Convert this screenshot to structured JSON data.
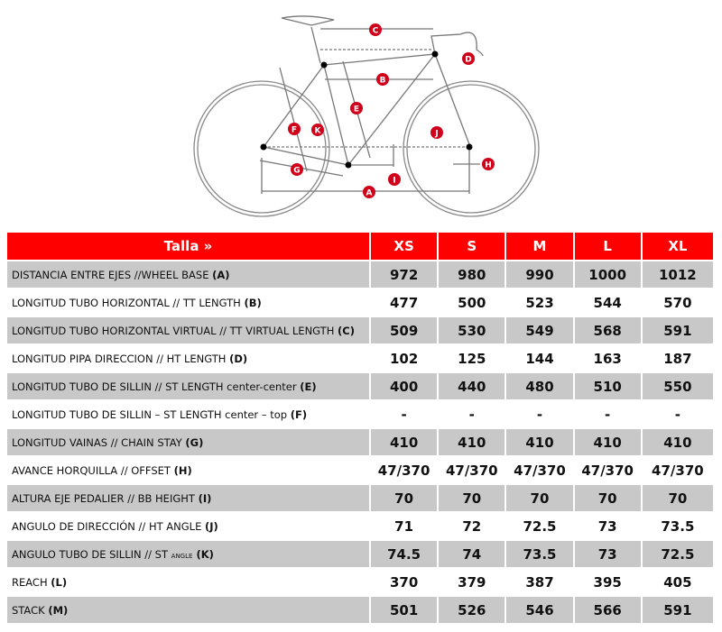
{
  "diagram": {
    "markers": [
      "A",
      "B",
      "C",
      "D",
      "E",
      "F",
      "G",
      "H",
      "I",
      "J",
      "K"
    ],
    "marker_color": "#d0021b"
  },
  "table": {
    "header_color": "#ff0000",
    "header_label": "Talla »",
    "sizes": [
      "XS",
      "S",
      "M",
      "L",
      "XL"
    ],
    "rows": [
      {
        "label": "DISTANCIA ENTRE EJES //WHEEL BASE ",
        "code": "(A)",
        "values": [
          "972",
          "980",
          "990",
          "1000",
          "1012"
        ]
      },
      {
        "label": "LONGITUD TUBO HORIZONTAL // TT LENGTH ",
        "code": "(B)",
        "values": [
          "477",
          "500",
          "523",
          "544",
          "570"
        ]
      },
      {
        "label": "LONGITUD TUBO HORIZONTAL VIRTUAL // TT VIRTUAL LENGTH ",
        "code": "(C)",
        "values": [
          "509",
          "530",
          "549",
          "568",
          "591"
        ]
      },
      {
        "label": "LONGITUD PIPA DIRECCION // HT LENGTH ",
        "code": "(D)",
        "values": [
          "102",
          "125",
          "144",
          "163",
          "187"
        ]
      },
      {
        "label": "LONGITUD TUBO DE SILLIN // ST LENGTH center-center ",
        "code": "(E)",
        "values": [
          "400",
          "440",
          "480",
          "510",
          "550"
        ]
      },
      {
        "label": "LONGITUD TUBO DE SILLIN – ST LENGTH center – top ",
        "code": "(F)",
        "values": [
          "-",
          "-",
          "-",
          "-",
          "-"
        ]
      },
      {
        "label": "LONGITUD VAINAS // CHAIN STAY ",
        "code": "(G)",
        "values": [
          "410",
          "410",
          "410",
          "410",
          "410"
        ]
      },
      {
        "label": "AVANCE HORQUILLA // OFFSET  ",
        "code": "(H)",
        "values": [
          "47/370",
          "47/370",
          "47/370",
          "47/370",
          "47/370"
        ]
      },
      {
        "label": "ALTURA EJE PEDALIER  // BB HEIGHT  ",
        "code": "(I)",
        "values": [
          "70",
          "70",
          "70",
          "70",
          "70"
        ]
      },
      {
        "label": "ANGULO DE DIRECCIÓN // HT ANGLE ",
        "code": "(J)",
        "values": [
          "71",
          "72",
          "72.5",
          "73",
          "73.5"
        ]
      },
      {
        "label": "ANGULO TUBO DE SILLIN // ST ",
        "small": "ANGLE",
        "code": " (K)",
        "values": [
          "74.5",
          "74",
          "73.5",
          "73",
          "72.5"
        ]
      },
      {
        "label": "REACH  ",
        "code": "(L)",
        "values": [
          "370",
          "379",
          "387",
          "395",
          "405"
        ]
      },
      {
        "label": "STACK ",
        "code": "(M)",
        "values": [
          "501",
          "526",
          "546",
          "566",
          "591"
        ]
      }
    ]
  }
}
